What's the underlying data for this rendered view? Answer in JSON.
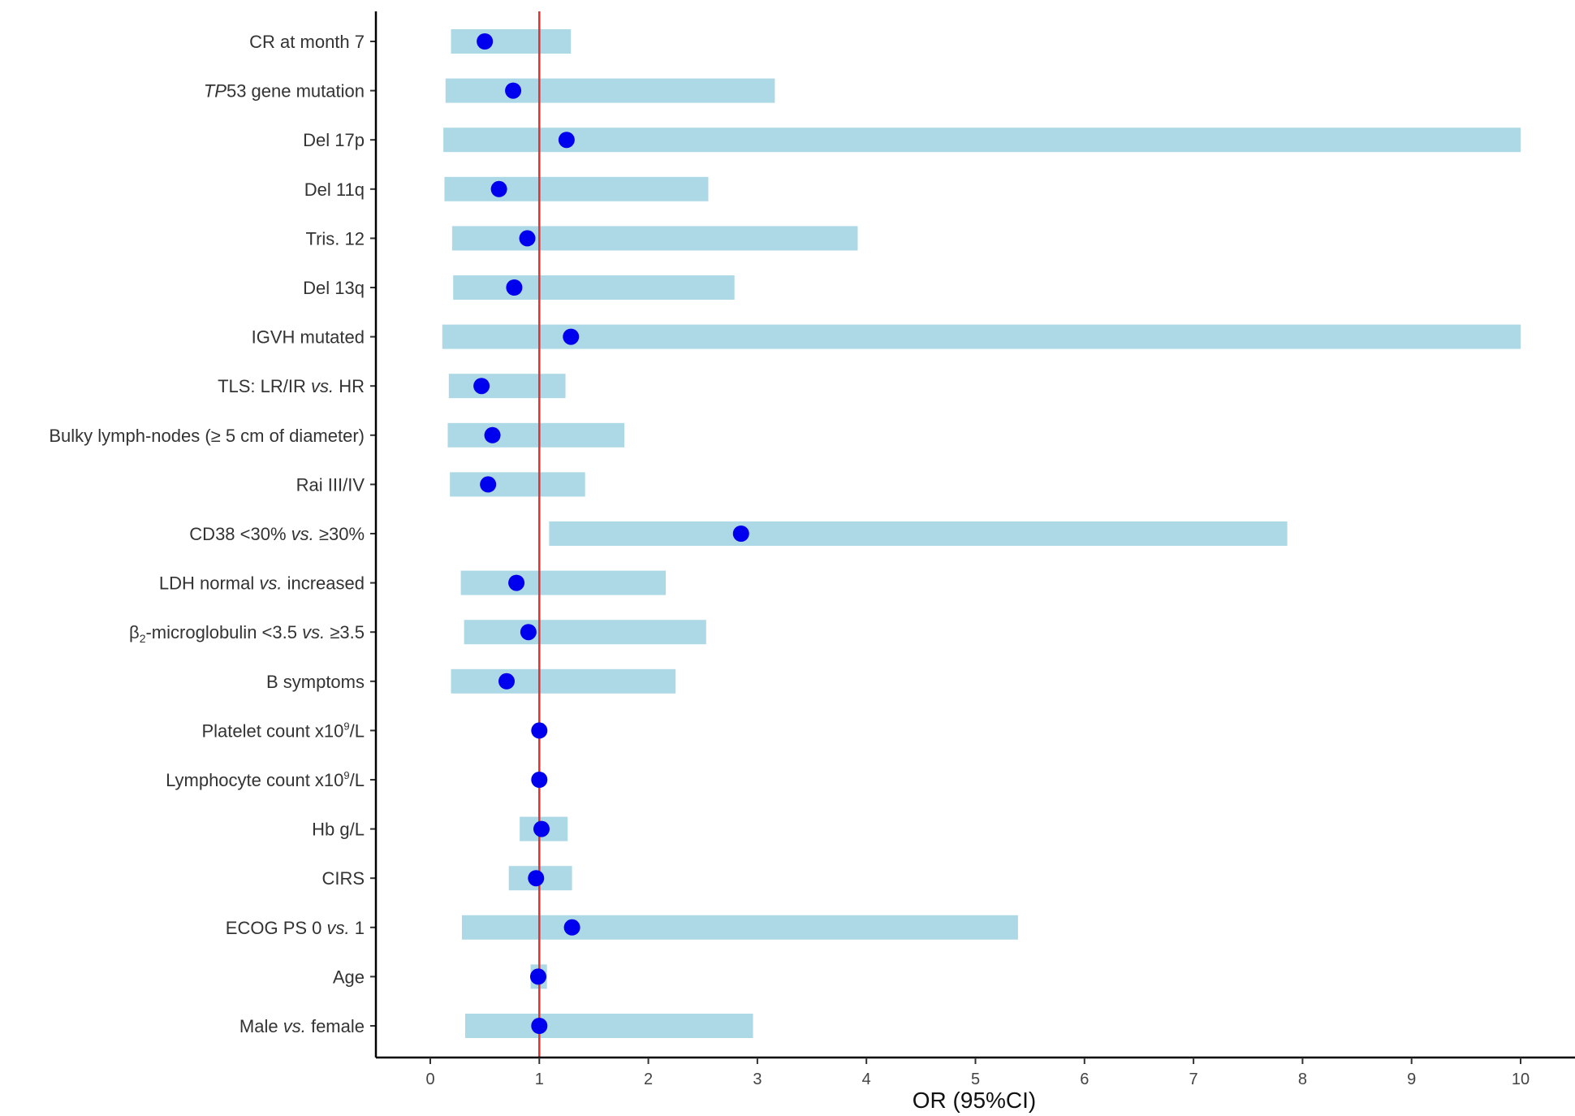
{
  "chart_data": {
    "type": "forest",
    "xlabel": "OR (95%CI)",
    "xlim": [
      -0.5,
      10.5
    ],
    "xticks": [
      "0",
      "1",
      "2",
      "3",
      "4",
      "5",
      "6",
      "7",
      "8",
      "9",
      "10"
    ],
    "reference_line": 1,
    "colors": {
      "ci_bar": "#add8e6",
      "point": "#0000ee",
      "reference_line": "#e03030",
      "axis": "#000000"
    },
    "rows": [
      {
        "parts": [
          {
            "t": "CR at month 7"
          }
        ],
        "or": 0.5,
        "lower": 0.19,
        "upper": 1.29
      },
      {
        "parts": [
          {
            "t": "TP",
            "i": true
          },
          {
            "t": "53 gene mutation"
          }
        ],
        "or": 0.76,
        "lower": 0.14,
        "upper": 3.16
      },
      {
        "parts": [
          {
            "t": "Del 17p"
          }
        ],
        "or": 1.25,
        "lower": 0.12,
        "upper": 10.0
      },
      {
        "parts": [
          {
            "t": "Del 11q"
          }
        ],
        "or": 0.63,
        "lower": 0.13,
        "upper": 2.55
      },
      {
        "parts": [
          {
            "t": "Tris. 12"
          }
        ],
        "or": 0.89,
        "lower": 0.2,
        "upper": 3.92
      },
      {
        "parts": [
          {
            "t": "Del 13q"
          }
        ],
        "or": 0.77,
        "lower": 0.21,
        "upper": 2.79
      },
      {
        "parts": [
          {
            "t": "IGVH mutated"
          }
        ],
        "or": 1.29,
        "lower": 0.11,
        "upper": 10.0
      },
      {
        "parts": [
          {
            "t": "TLS: LR/IR "
          },
          {
            "t": "vs.",
            "i": true
          },
          {
            "t": " HR"
          }
        ],
        "or": 0.47,
        "lower": 0.17,
        "upper": 1.24
      },
      {
        "parts": [
          {
            "t": "Bulky lymph-nodes (≥ 5 cm of diameter)"
          }
        ],
        "or": 0.57,
        "lower": 0.16,
        "upper": 1.78
      },
      {
        "parts": [
          {
            "t": "Rai III/IV"
          }
        ],
        "or": 0.53,
        "lower": 0.18,
        "upper": 1.42
      },
      {
        "parts": [
          {
            "t": "CD38 <30% "
          },
          {
            "t": "vs.",
            "i": true
          },
          {
            "t": " ≥30%"
          }
        ],
        "or": 2.85,
        "lower": 1.09,
        "upper": 7.86
      },
      {
        "parts": [
          {
            "t": "LDH normal "
          },
          {
            "t": "vs.",
            "i": true
          },
          {
            "t": " increased"
          }
        ],
        "or": 0.79,
        "lower": 0.28,
        "upper": 2.16
      },
      {
        "parts": [
          {
            "t": "β"
          },
          {
            "t": "2",
            "sub": true
          },
          {
            "t": "-microglobulin <3.5 "
          },
          {
            "t": "vs.",
            "i": true
          },
          {
            "t": " ≥3.5"
          }
        ],
        "or": 0.9,
        "lower": 0.31,
        "upper": 2.53
      },
      {
        "parts": [
          {
            "t": "B symptoms"
          }
        ],
        "or": 0.7,
        "lower": 0.19,
        "upper": 2.25
      },
      {
        "parts": [
          {
            "t": "Platelet count x10"
          },
          {
            "t": "9",
            "sup": true
          },
          {
            "t": "/L"
          }
        ],
        "or": 1.0,
        "lower": 1.0,
        "upper": 1.0
      },
      {
        "parts": [
          {
            "t": "Lymphocyte count x10"
          },
          {
            "t": "9",
            "sup": true
          },
          {
            "t": "/L"
          }
        ],
        "or": 1.0,
        "lower": 1.0,
        "upper": 1.0
      },
      {
        "parts": [
          {
            "t": "Hb g/L"
          }
        ],
        "or": 1.02,
        "lower": 0.82,
        "upper": 1.26
      },
      {
        "parts": [
          {
            "t": "CIRS"
          }
        ],
        "or": 0.97,
        "lower": 0.72,
        "upper": 1.3
      },
      {
        "parts": [
          {
            "t": "ECOG PS 0 "
          },
          {
            "t": "vs.",
            "i": true
          },
          {
            "t": " 1"
          }
        ],
        "or": 1.3,
        "lower": 0.29,
        "upper": 5.39
      },
      {
        "parts": [
          {
            "t": "Age"
          }
        ],
        "or": 0.99,
        "lower": 0.92,
        "upper": 1.07
      },
      {
        "parts": [
          {
            "t": "Male "
          },
          {
            "t": "vs.",
            "i": true
          },
          {
            "t": " female"
          }
        ],
        "or": 1.0,
        "lower": 0.32,
        "upper": 2.96
      }
    ]
  }
}
